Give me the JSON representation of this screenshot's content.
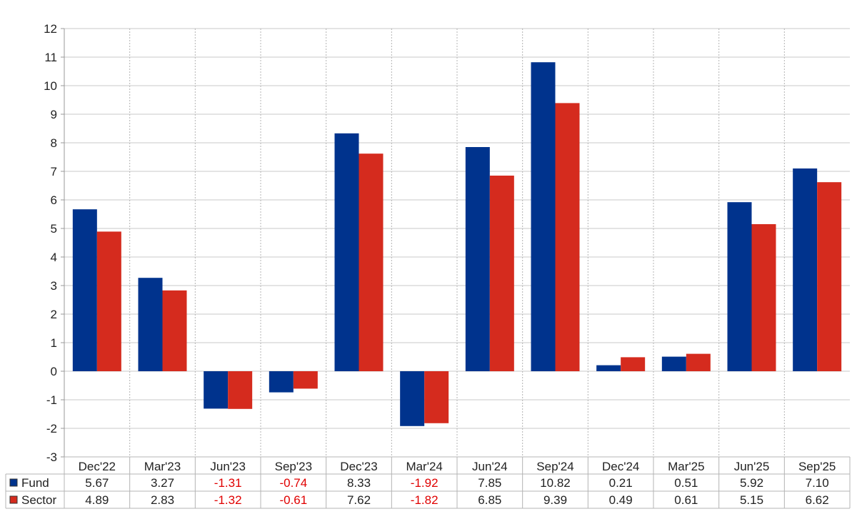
{
  "chart_data": {
    "type": "bar",
    "title": "",
    "xlabel": "",
    "ylabel": "",
    "ylim": [
      -3,
      12
    ],
    "yticks": [
      -3,
      -2,
      -1,
      0,
      1,
      2,
      3,
      4,
      5,
      6,
      7,
      8,
      9,
      10,
      11,
      12
    ],
    "grid": true,
    "legend": "data-table-left",
    "categories": [
      "Dec'22",
      "Mar'23",
      "Jun'23",
      "Sep'23",
      "Dec'23",
      "Mar'24",
      "Jun'24",
      "Sep'24",
      "Dec'24",
      "Mar'25",
      "Jun'25",
      "Sep'25"
    ],
    "series": [
      {
        "name": "Fund",
        "color": "#00338d",
        "values": [
          5.67,
          3.27,
          -1.31,
          -0.74,
          8.33,
          -1.92,
          7.85,
          10.82,
          0.21,
          0.51,
          5.92,
          7.1
        ],
        "labels": [
          "5.67",
          "3.27",
          "-1.31",
          "-0.74",
          "8.33",
          "-1.92",
          "7.85",
          "10.82",
          "0.21",
          "0.51",
          "5.92",
          "7.10"
        ]
      },
      {
        "name": "Sector",
        "color": "#d52b1e",
        "values": [
          4.89,
          2.83,
          -1.32,
          -0.61,
          7.62,
          -1.82,
          6.85,
          9.39,
          0.49,
          0.61,
          5.15,
          6.62
        ],
        "labels": [
          "4.89",
          "2.83",
          "-1.32",
          "-0.61",
          "7.62",
          "-1.82",
          "6.85",
          "9.39",
          "0.49",
          "0.61",
          "5.15",
          "6.62"
        ]
      }
    ],
    "negative_label_color": "#e00000"
  }
}
